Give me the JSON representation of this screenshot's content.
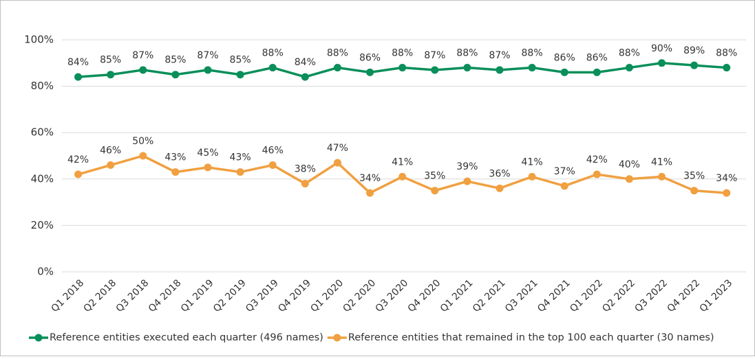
{
  "chart_data": {
    "type": "line",
    "categories": [
      "Q1 2018",
      "Q2 2018",
      "Q3 2018",
      "Q4 2018",
      "Q1 2019",
      "Q2 2019",
      "Q3 2019",
      "Q4 2019",
      "Q1 2020",
      "Q2 2020",
      "Q3 2020",
      "Q4 2020",
      "Q1 2021",
      "Q2 2021",
      "Q3 2021",
      "Q4 2021",
      "Q1 2022",
      "Q2 2022",
      "Q3 2022",
      "Q4 2022",
      "Q1 2023"
    ],
    "series": [
      {
        "name": "Reference entities executed each quarter (496 names)",
        "color": "#0a8f5a",
        "values": [
          84,
          85,
          87,
          85,
          87,
          85,
          88,
          84,
          88,
          86,
          88,
          87,
          88,
          87,
          88,
          86,
          86,
          88,
          90,
          89,
          88
        ],
        "value_labels": [
          "84%",
          "85%",
          "87%",
          "85%",
          "87%",
          "85%",
          "88%",
          "84%",
          "88%",
          "86%",
          "88%",
          "87%",
          "88%",
          "87%",
          "88%",
          "86%",
          "86%",
          "88%",
          "90%",
          "89%",
          "88%"
        ]
      },
      {
        "name": "Reference entities that remained in the top 100 each quarter (30 names)",
        "color": "#f0a040",
        "values": [
          42,
          46,
          50,
          43,
          45,
          43,
          46,
          38,
          47,
          34,
          41,
          35,
          39,
          36,
          41,
          37,
          42,
          40,
          41,
          35,
          34
        ],
        "value_labels": [
          "42%",
          "46%",
          "50%",
          "43%",
          "45%",
          "43%",
          "46%",
          "38%",
          "47%",
          "34%",
          "41%",
          "35%",
          "39%",
          "36%",
          "41%",
          "37%",
          "42%",
          "40%",
          "41%",
          "35%",
          "34%"
        ]
      }
    ],
    "ylim": [
      0,
      100
    ],
    "yticks": [
      {
        "value": 0,
        "label": "0%"
      },
      {
        "value": 20,
        "label": "20%"
      },
      {
        "value": 40,
        "label": "40%"
      },
      {
        "value": 60,
        "label": "60%"
      },
      {
        "value": 80,
        "label": "80%"
      },
      {
        "value": 100,
        "label": "100%"
      }
    ],
    "grid": true,
    "legend": "bottom"
  }
}
